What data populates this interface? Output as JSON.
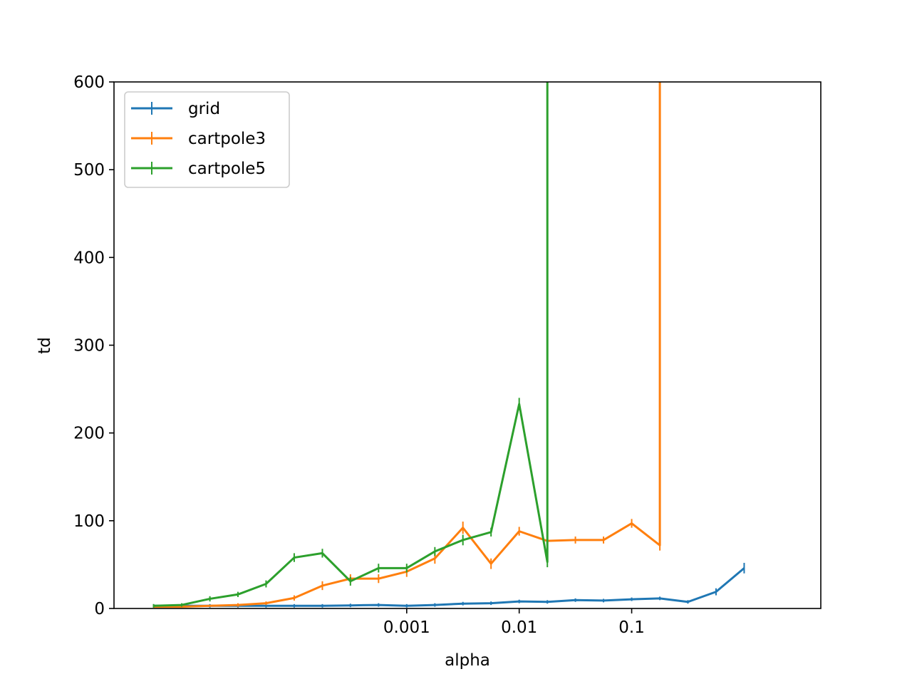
{
  "chart_data": {
    "type": "line",
    "title": "",
    "xlabel": "alpha",
    "ylabel": "td",
    "xscale": "log",
    "xlim": [
      2.5e-06,
      4.8
    ],
    "ylim": [
      0,
      600
    ],
    "x_ticks": [
      0.001,
      0.01,
      0.1
    ],
    "x_tick_labels": [
      "0.001",
      "0.01",
      "0.1"
    ],
    "y_ticks": [
      0,
      100,
      200,
      300,
      400,
      500,
      600
    ],
    "y_tick_labels": [
      "0",
      "100",
      "200",
      "300",
      "400",
      "500",
      "600"
    ],
    "grid": false,
    "legend_position": "top-left",
    "error_bars": true,
    "series": [
      {
        "name": "grid",
        "color": "#1f77b4",
        "x": [
          5.62e-06,
          1e-05,
          1.78e-05,
          3.16e-05,
          5.62e-05,
          0.0001,
          0.000178,
          0.000316,
          0.000562,
          0.001,
          0.00178,
          0.00316,
          0.00562,
          0.01,
          0.0178,
          0.0316,
          0.0562,
          0.1,
          0.178,
          0.316,
          0.562,
          1.0
        ],
        "y": [
          3,
          3,
          3,
          3,
          3,
          3,
          3,
          3.5,
          4,
          3,
          4,
          5.5,
          6,
          8,
          7.5,
          9.5,
          9,
          10.5,
          11.5,
          7.5,
          19,
          46
        ],
        "err": [
          2,
          2,
          2,
          2,
          2,
          2,
          2,
          2,
          2,
          2,
          2,
          2,
          2,
          2,
          2,
          2,
          2,
          2,
          2,
          2,
          4,
          6
        ]
      },
      {
        "name": "cartpole3",
        "color": "#ff7f0e",
        "x": [
          5.62e-06,
          1e-05,
          1.78e-05,
          3.16e-05,
          5.62e-05,
          0.0001,
          0.000178,
          0.000316,
          0.000562,
          0.001,
          0.00178,
          0.00316,
          0.00562,
          0.01,
          0.0178,
          0.0316,
          0.0562,
          0.1,
          0.178,
          0.178
        ],
        "y": [
          2,
          2,
          3,
          4,
          6,
          12,
          26,
          34,
          34,
          42,
          57,
          92,
          51,
          88,
          77,
          78,
          78,
          97,
          72,
          600
        ],
        "err": [
          1,
          1,
          1,
          2,
          2,
          3,
          5,
          5,
          5,
          6,
          6,
          7,
          6,
          5,
          3,
          4,
          4,
          5,
          6,
          0
        ]
      },
      {
        "name": "cartpole5",
        "color": "#2ca02c",
        "x": [
          5.62e-06,
          1e-05,
          1.78e-05,
          3.16e-05,
          5.62e-05,
          0.0001,
          0.000178,
          0.000316,
          0.000562,
          0.001,
          0.00178,
          0.00316,
          0.00562,
          0.01,
          0.0178,
          0.0178
        ],
        "y": [
          3,
          4,
          11,
          16,
          28,
          58,
          63,
          31,
          46,
          46,
          65,
          78,
          87,
          233,
          53,
          600
        ],
        "err": [
          2,
          2,
          3,
          3,
          4,
          5,
          5,
          5,
          5,
          5,
          5,
          6,
          5,
          7,
          6,
          0
        ]
      }
    ]
  }
}
